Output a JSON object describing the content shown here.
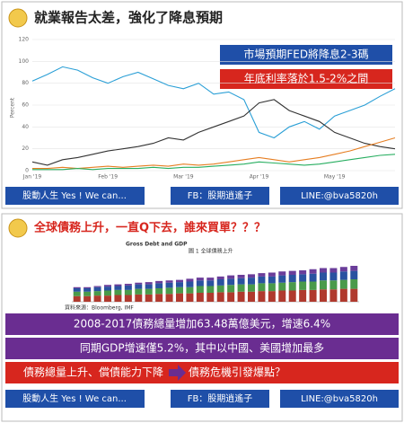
{
  "slides": [
    {
      "title": "就業報告太差，強化了降息預期",
      "callouts": [
        "市場預期FED將降息2-3碼",
        "年底利率落於1.5-2%之間"
      ],
      "footer": [
        "股動人生 Yes ! We can...",
        "FB：股期逍遙子",
        "LINE:@bva5820h"
      ]
    },
    {
      "title": "全球債務上升，一直Q下去，誰來買單？？？",
      "banners": [
        "2008-2017債務總量增加63.48萬億美元，增速6.4%",
        "同期GDP增速僅5.2%，其中以中國、美國增加最多",
        "債務總量上升、償債能力下降",
        "債務危機引發爆點？"
      ],
      "footer": [
        "股動人生 Yes ! We can...",
        "FB：股期逍遙子",
        "LINE:@bva5820h"
      ]
    }
  ],
  "chart_data": [
    {
      "type": "line",
      "ylabel": "Percent",
      "categories": [
        "Jan '19",
        null,
        null,
        null,
        null,
        "Feb '19",
        null,
        null,
        null,
        null,
        "Mar '19",
        null,
        null,
        null,
        null,
        "Apr '19",
        null,
        null,
        null,
        null,
        "May '19",
        null,
        null,
        null,
        null
      ],
      "series": [
        {
          "color": "#2a9fd6",
          "values": [
            82,
            88,
            95,
            92,
            85,
            80,
            86,
            90,
            84,
            78,
            75,
            80,
            70,
            72,
            65,
            35,
            30,
            40,
            45,
            38,
            50,
            55,
            60,
            68,
            75
          ]
        },
        {
          "color": "#333333",
          "values": [
            8,
            5,
            10,
            12,
            15,
            18,
            20,
            22,
            25,
            30,
            28,
            35,
            40,
            45,
            50,
            62,
            65,
            55,
            50,
            45,
            35,
            30,
            25,
            22,
            20
          ]
        },
        {
          "color": "#e67e22",
          "values": [
            2,
            2,
            3,
            2,
            3,
            4,
            3,
            4,
            5,
            4,
            6,
            5,
            6,
            8,
            10,
            12,
            10,
            8,
            10,
            12,
            15,
            18,
            22,
            26,
            30
          ]
        },
        {
          "color": "#27ae60",
          "values": [
            1,
            1,
            1,
            2,
            1,
            2,
            2,
            2,
            3,
            2,
            3,
            3,
            4,
            5,
            6,
            8,
            7,
            6,
            5,
            6,
            8,
            10,
            12,
            14,
            15
          ]
        }
      ],
      "ylim": [
        0,
        120
      ],
      "yticks": [
        0,
        20,
        40,
        60,
        80,
        100,
        120
      ],
      "grid": true
    },
    {
      "type": "bar",
      "title": "Gross Debt and GDP",
      "subtitle": "圖 1 全球債務上升",
      "source": "資料來源：Bloomberg, IMF",
      "categories": [
        null,
        null,
        null,
        null,
        null,
        null,
        null,
        null,
        null,
        null,
        null,
        null,
        null,
        null,
        null,
        null,
        null,
        null,
        null,
        null,
        null,
        null,
        null,
        null,
        null,
        null,
        null,
        null
      ],
      "series": [
        {
          "color": "#b03a2e",
          "values": [
            10,
            10,
            11,
            11,
            12,
            12,
            13,
            13,
            14,
            14,
            15,
            15,
            16,
            16,
            17,
            17,
            18,
            18,
            19,
            19,
            20,
            20,
            21,
            21,
            22,
            22,
            23,
            23
          ]
        },
        {
          "color": "#4a9a4a",
          "values": [
            8,
            8,
            8,
            9,
            9,
            9,
            10,
            10,
            10,
            11,
            11,
            11,
            12,
            12,
            12,
            13,
            13,
            13,
            14,
            14,
            14,
            15,
            15,
            15,
            16,
            16,
            16,
            17
          ]
        },
        {
          "color": "#2a52a0",
          "values": [
            6,
            6,
            7,
            7,
            7,
            8,
            8,
            8,
            9,
            9,
            9,
            10,
            10,
            10,
            11,
            11,
            11,
            12,
            12,
            12,
            13,
            13,
            13,
            14,
            14,
            14,
            15,
            15
          ]
        },
        {
          "color": "#6a3d9a",
          "values": [
            2,
            2,
            2,
            3,
            3,
            3,
            3,
            4,
            4,
            4,
            4,
            5,
            5,
            5,
            5,
            6,
            6,
            6,
            6,
            7,
            7,
            7,
            7,
            8,
            8,
            8,
            8,
            9
          ]
        }
      ],
      "ylim": [
        0,
        80
      ]
    }
  ]
}
